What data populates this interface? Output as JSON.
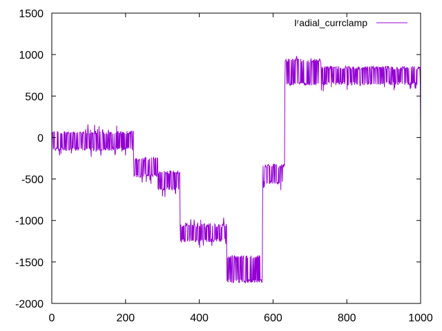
{
  "chart_data": {
    "type": "line",
    "xlim": [
      0,
      1000
    ],
    "ylim": [
      -2000,
      1500
    ],
    "x_ticks": [
      "0",
      "200",
      "400",
      "600",
      "800",
      "1000"
    ],
    "y_ticks": [
      "1500",
      "1000",
      "500",
      "0",
      "-500",
      "-1000",
      "-1500",
      "-2000"
    ],
    "x_tick_values": [
      0,
      200,
      400,
      600,
      800,
      1000
    ],
    "y_tick_values": [
      1500,
      1000,
      500,
      0,
      -500,
      -1000,
      -1500,
      -2000
    ],
    "grid": false,
    "legend_position": "top-right",
    "series": [
      {
        "name": "I_radial_currclamp",
        "legend_text": "Iʳadial_currclamp",
        "color": "#9400d3",
        "segments": [
          {
            "x_start": 0,
            "x_end": 222,
            "low": -160,
            "high": 80,
            "spike_low": -240,
            "spike_high": 160
          },
          {
            "x_start": 222,
            "x_end": 288,
            "low": -480,
            "high": -240,
            "spike_low": -560,
            "spike_high": -240
          },
          {
            "x_start": 288,
            "x_end": 348,
            "low": -640,
            "high": -400,
            "spike_low": -720,
            "spike_high": -400
          },
          {
            "x_start": 348,
            "x_end": 475,
            "low": -1260,
            "high": -1040,
            "spike_low": -1350,
            "spike_high": -950
          },
          {
            "x_start": 475,
            "x_end": 572,
            "low": -1750,
            "high": -1420,
            "spike_low": -1750,
            "spike_high": -1420
          },
          {
            "x_start": 572,
            "x_end": 632,
            "low": -560,
            "high": -320,
            "spike_low": -640,
            "spike_high": -320
          },
          {
            "x_start": 632,
            "x_end": 730,
            "low": 630,
            "high": 950,
            "spike_low": 630,
            "spike_high": 1020
          },
          {
            "x_start": 730,
            "x_end": 1000,
            "low": 630,
            "high": 860,
            "spike_low": 550,
            "spike_high": 860
          }
        ],
        "end_value": 60
      }
    ]
  }
}
